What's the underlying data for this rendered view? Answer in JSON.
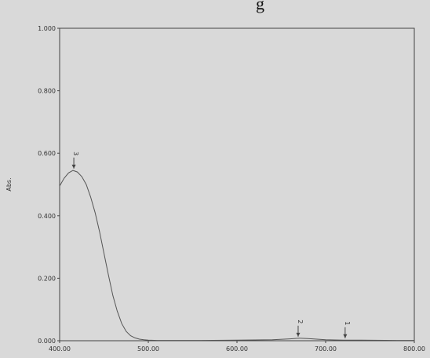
{
  "page": {
    "fragment_text": "g"
  },
  "chart_data": {
    "type": "line",
    "title": "",
    "xlabel": "",
    "ylabel": "Abs.",
    "xlim": [
      400,
      800
    ],
    "ylim": [
      0,
      1
    ],
    "x_ticks": [
      "400.00",
      "500.00",
      "600.00",
      "700.00",
      "800.00"
    ],
    "x_tick_values": [
      400,
      500,
      600,
      700,
      800
    ],
    "y_ticks": [
      "0.000",
      "0.200",
      "0.400",
      "0.600",
      "0.800",
      "1.000"
    ],
    "y_tick_values": [
      0,
      0.2,
      0.4,
      0.6,
      0.8,
      1.0
    ],
    "series": [
      {
        "x": [
          400,
          405,
          410,
          415,
          420,
          425,
          430,
          435,
          440,
          445,
          450,
          455,
          460,
          465,
          470,
          475,
          480,
          485,
          490,
          495,
          500,
          510,
          520,
          560,
          600,
          640,
          660,
          670,
          680,
          700,
          720,
          740,
          780,
          800
        ],
        "values": [
          0.495,
          0.52,
          0.537,
          0.545,
          0.54,
          0.525,
          0.5,
          0.46,
          0.41,
          0.35,
          0.28,
          0.21,
          0.145,
          0.095,
          0.055,
          0.03,
          0.016,
          0.009,
          0.005,
          0.003,
          0.002,
          0.001,
          0.001,
          0.001,
          0.002,
          0.003,
          0.006,
          0.008,
          0.007,
          0.003,
          0.002,
          0.002,
          0.001,
          0.001
        ]
      }
    ],
    "peaks": [
      {
        "label": "3",
        "x": 416,
        "y": 0.546
      },
      {
        "label": "2",
        "x": 669,
        "y": 0.008
      },
      {
        "label": "1",
        "x": 722,
        "y": 0.003
      }
    ],
    "colors": {
      "line": "#555555",
      "background": "#d9d9d9",
      "frame": "#444444"
    }
  }
}
